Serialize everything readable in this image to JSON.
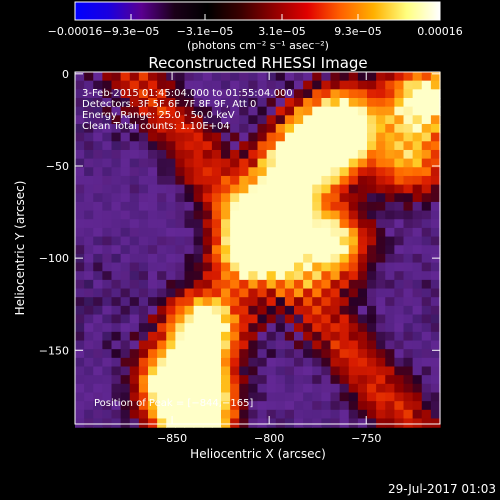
{
  "chart_data": {
    "type": "heatmap",
    "title": "Reconstructed RHESSI Image",
    "xlabel": "Heliocentric X (arcsec)",
    "ylabel": "Heliocentric Y (arcsec)",
    "xlim": [
      -900,
      -712
    ],
    "ylim": [
      -190,
      1
    ],
    "x_ticks": [
      {
        "value": -850,
        "label": "−850"
      },
      {
        "value": -800,
        "label": "−800"
      },
      {
        "value": -750,
        "label": "−750"
      }
    ],
    "y_ticks": [
      {
        "value": 0,
        "label": "0"
      },
      {
        "value": -50,
        "label": "−50"
      },
      {
        "value": -100,
        "label": "−100"
      },
      {
        "value": -150,
        "label": "−150"
      }
    ],
    "colorbar": {
      "range": [
        -0.00016,
        0.00016
      ],
      "unit_label": "(photons cm⁻² s⁻¹ asec⁻²)",
      "tick_labels": [
        "−0.00016",
        "−9.3e−05",
        "−3.1e−05",
        "3.1e−05",
        "9.3e−05",
        "0.00016"
      ],
      "colors": [
        "#0000ff",
        "#1a00e0",
        "#5a0090",
        "#1a0018",
        "#000000",
        "#3a0000",
        "#900000",
        "#e00000",
        "#ff6000",
        "#ffb000",
        "#ffff80",
        "#ffffff"
      ]
    },
    "bright_sources": [
      {
        "x": -848,
        "y": -165,
        "level": 1.0
      },
      {
        "x": -835,
        "y": -135,
        "level": 0.9
      },
      {
        "x": -812,
        "y": -95,
        "level": 0.75
      },
      {
        "x": -800,
        "y": -75,
        "level": 0.7
      },
      {
        "x": -790,
        "y": -50,
        "level": 0.7
      },
      {
        "x": -775,
        "y": -35,
        "level": 0.95
      },
      {
        "x": -762,
        "y": -22,
        "level": 0.6
      },
      {
        "x": -770,
        "y": -90,
        "level": 0.75
      },
      {
        "x": -730,
        "y": -45,
        "level": 0.55
      },
      {
        "x": -722,
        "y": -12,
        "level": 0.8
      },
      {
        "x": -840,
        "y": -180,
        "level": 0.9
      }
    ],
    "info_lines": [
      " 3-Feb-2015 01:45:04.000 to 01:55:04.000",
      "Detectors: 3F 5F 6F 7F 8F 9F, Att 0",
      "Energy Range: 25.0 - 50.0 keV",
      "Clean     Total counts: 1.10E+04"
    ],
    "annotation": "Position of Peak = [−844,−165]"
  },
  "footer_date": "29-Jul-2017 01:03"
}
